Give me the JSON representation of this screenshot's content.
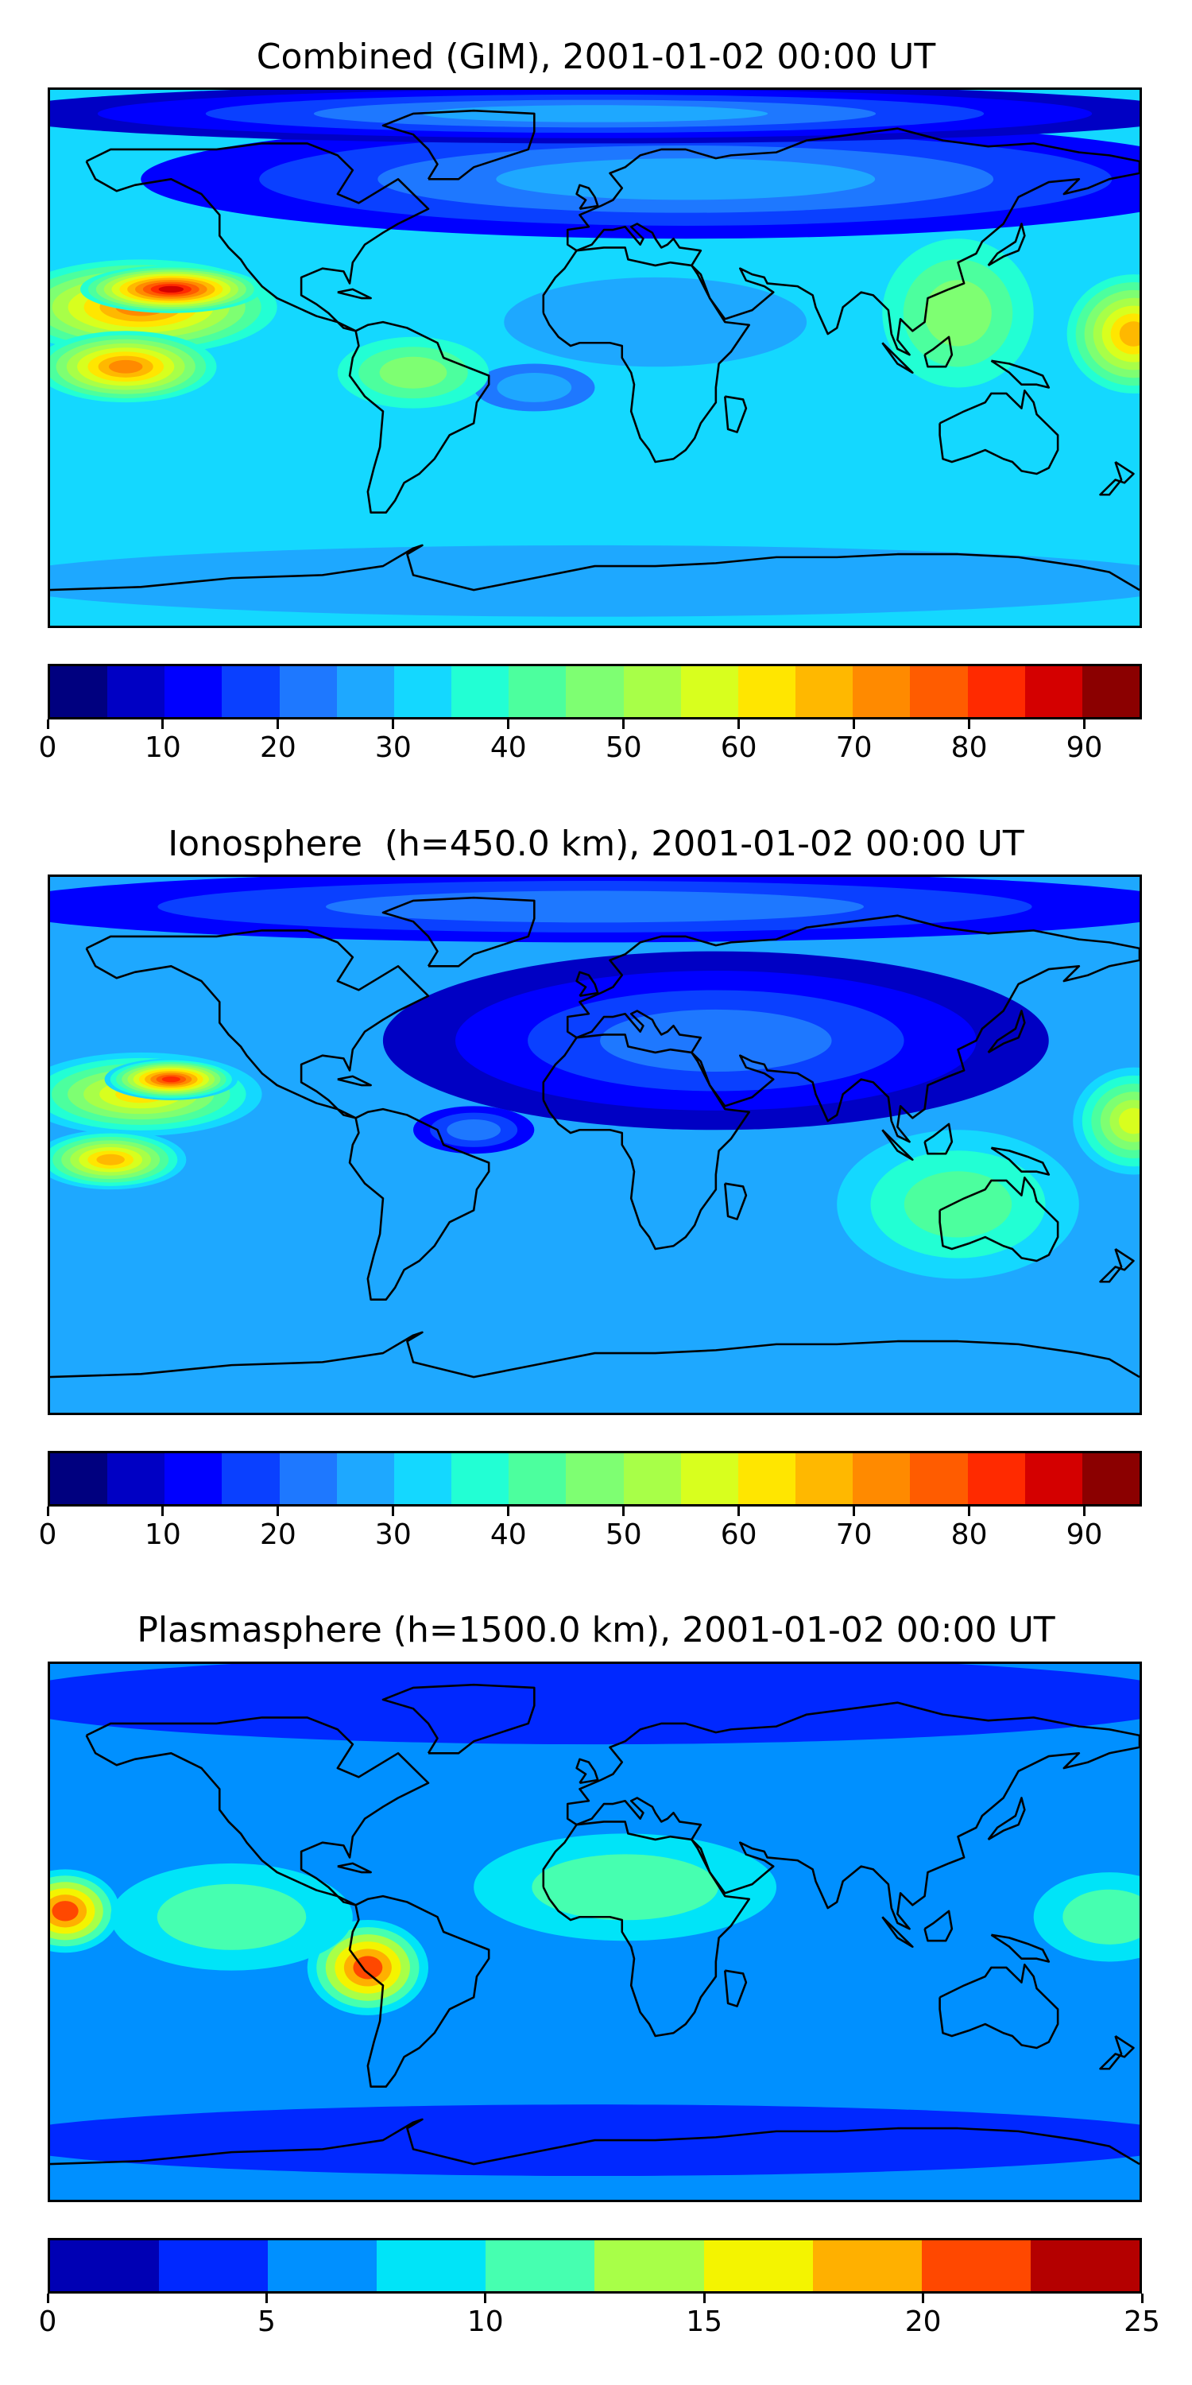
{
  "chart_data": [
    {
      "type": "heatmap",
      "title": "Combined (GIM), 2001-01-02 00:00 UT",
      "xlabel": "",
      "ylabel": "",
      "colorbar": {
        "levels": [
          0,
          5,
          10,
          15,
          20,
          25,
          30,
          35,
          40,
          45,
          50,
          55,
          60,
          65,
          70,
          75,
          80,
          85,
          90,
          95
        ],
        "ticks": [
          0,
          10,
          20,
          30,
          40,
          50,
          60,
          70,
          80,
          90
        ],
        "colors": [
          "#00007f",
          "#0000c4",
          "#0000ff",
          "#0a40ff",
          "#1e78ff",
          "#1ea8ff",
          "#14d8ff",
          "#22ffd4",
          "#4cff9e",
          "#7eff72",
          "#a8ff48",
          "#d8ff1e",
          "#ffe600",
          "#ffb800",
          "#ff8a00",
          "#ff5c00",
          "#ff2a00",
          "#d40000",
          "#8b0000"
        ]
      },
      "background_level": 30,
      "features": [
        {
          "lon": -150,
          "lat": 17,
          "rx": 45,
          "ry": 16,
          "value": 70
        },
        {
          "lon": -140,
          "lat": 23,
          "rx": 30,
          "ry": 8,
          "value": 85
        },
        {
          "lon": -155,
          "lat": -3,
          "rx": 30,
          "ry": 12,
          "value": 70
        },
        {
          "lon": 178,
          "lat": 8,
          "rx": 22,
          "ry": 20,
          "value": 65
        },
        {
          "lon": 30,
          "lat": 60,
          "rx": 180,
          "ry": 20,
          "value": 10
        },
        {
          "lon": 0,
          "lat": 82,
          "rx": 200,
          "ry": 10,
          "value": 5
        },
        {
          "lon": 20,
          "lat": 12,
          "rx": 50,
          "ry": 15,
          "value": 25
        },
        {
          "lon": -20,
          "lat": -10,
          "rx": 20,
          "ry": 8,
          "value": 20
        },
        {
          "lon": 120,
          "lat": 15,
          "rx": 25,
          "ry": 25,
          "value": 45
        },
        {
          "lon": -60,
          "lat": -5,
          "rx": 25,
          "ry": 12,
          "value": 45
        },
        {
          "lon": 0,
          "lat": -75,
          "rx": 200,
          "ry": 12,
          "value": 25
        }
      ]
    },
    {
      "type": "heatmap",
      "title": "Ionosphere  (h=450.0 km), 2001-01-02 00:00 UT",
      "xlabel": "",
      "ylabel": "",
      "colorbar": {
        "levels": [
          0,
          5,
          10,
          15,
          20,
          25,
          30,
          35,
          40,
          45,
          50,
          55,
          60,
          65,
          70,
          75,
          80,
          85,
          90,
          95
        ],
        "ticks": [
          0,
          10,
          20,
          30,
          40,
          50,
          60,
          70,
          80,
          90
        ],
        "colors": [
          "#00007f",
          "#0000c4",
          "#0000ff",
          "#0a40ff",
          "#1e78ff",
          "#1ea8ff",
          "#14d8ff",
          "#22ffd4",
          "#4cff9e",
          "#7eff72",
          "#a8ff48",
          "#d8ff1e",
          "#ffe600",
          "#ffb800",
          "#ff8a00",
          "#ff5c00",
          "#ff2a00",
          "#d40000",
          "#8b0000"
        ]
      },
      "background_level": 25,
      "features": [
        {
          "lon": -150,
          "lat": 17,
          "rx": 40,
          "ry": 14,
          "value": 60
        },
        {
          "lon": -140,
          "lat": 22,
          "rx": 22,
          "ry": 7,
          "value": 80
        },
        {
          "lon": -160,
          "lat": -5,
          "rx": 25,
          "ry": 10,
          "value": 65
        },
        {
          "lon": 178,
          "lat": 8,
          "rx": 20,
          "ry": 18,
          "value": 55
        },
        {
          "lon": 40,
          "lat": 35,
          "rx": 110,
          "ry": 30,
          "value": 5
        },
        {
          "lon": -40,
          "lat": 5,
          "rx": 20,
          "ry": 8,
          "value": 10
        },
        {
          "lon": 0,
          "lat": 80,
          "rx": 200,
          "ry": 12,
          "value": 10
        },
        {
          "lon": 120,
          "lat": -20,
          "rx": 40,
          "ry": 25,
          "value": 40
        }
      ]
    },
    {
      "type": "heatmap",
      "title": "Plasmasphere (h=1500.0 km), 2001-01-02 00:00 UT",
      "xlabel": "",
      "ylabel": "",
      "colorbar": {
        "levels": [
          0,
          2.5,
          5,
          7.5,
          10,
          12.5,
          15,
          17.5,
          20,
          22.5,
          25
        ],
        "ticks": [
          0,
          5,
          10,
          15,
          20,
          25
        ],
        "colors": [
          "#0000b4",
          "#0028ff",
          "#0090ff",
          "#00e4f8",
          "#46ffb0",
          "#a8ff48",
          "#f4f400",
          "#ffb000",
          "#ff4800",
          "#b40000"
        ]
      },
      "background_level": 5,
      "features": [
        {
          "lon": -175,
          "lat": 7,
          "rx": 18,
          "ry": 14,
          "value": 20
        },
        {
          "lon": -75,
          "lat": -12,
          "rx": 20,
          "ry": 16,
          "value": 22
        },
        {
          "lon": -120,
          "lat": 5,
          "rx": 40,
          "ry": 18,
          "value": 12
        },
        {
          "lon": 10,
          "lat": 15,
          "rx": 50,
          "ry": 18,
          "value": 12
        },
        {
          "lon": 170,
          "lat": 5,
          "rx": 25,
          "ry": 15,
          "value": 12
        },
        {
          "lon": 0,
          "lat": 78,
          "rx": 200,
          "ry": 15,
          "value": 2
        },
        {
          "lon": 0,
          "lat": -70,
          "rx": 200,
          "ry": 12,
          "value": 2
        }
      ]
    }
  ]
}
